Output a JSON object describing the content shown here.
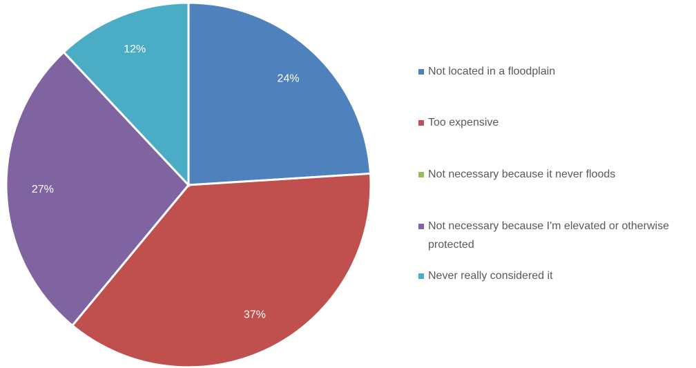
{
  "chart_data": {
    "type": "pie",
    "categories": [
      "Not located in a floodplain",
      "Too expensive",
      "Not necessary because it never floods",
      "Not necessary because I'm elevated or otherwise protected",
      "Never really considered it"
    ],
    "values": [
      24,
      37,
      0,
      27,
      12
    ],
    "value_labels": [
      "24%",
      "37%",
      null,
      "27%",
      "12%"
    ],
    "colors": [
      "#4f81bd",
      "#c0504d",
      "#9bbb59",
      "#8064a2",
      "#4bacc6"
    ],
    "legend": "right"
  }
}
